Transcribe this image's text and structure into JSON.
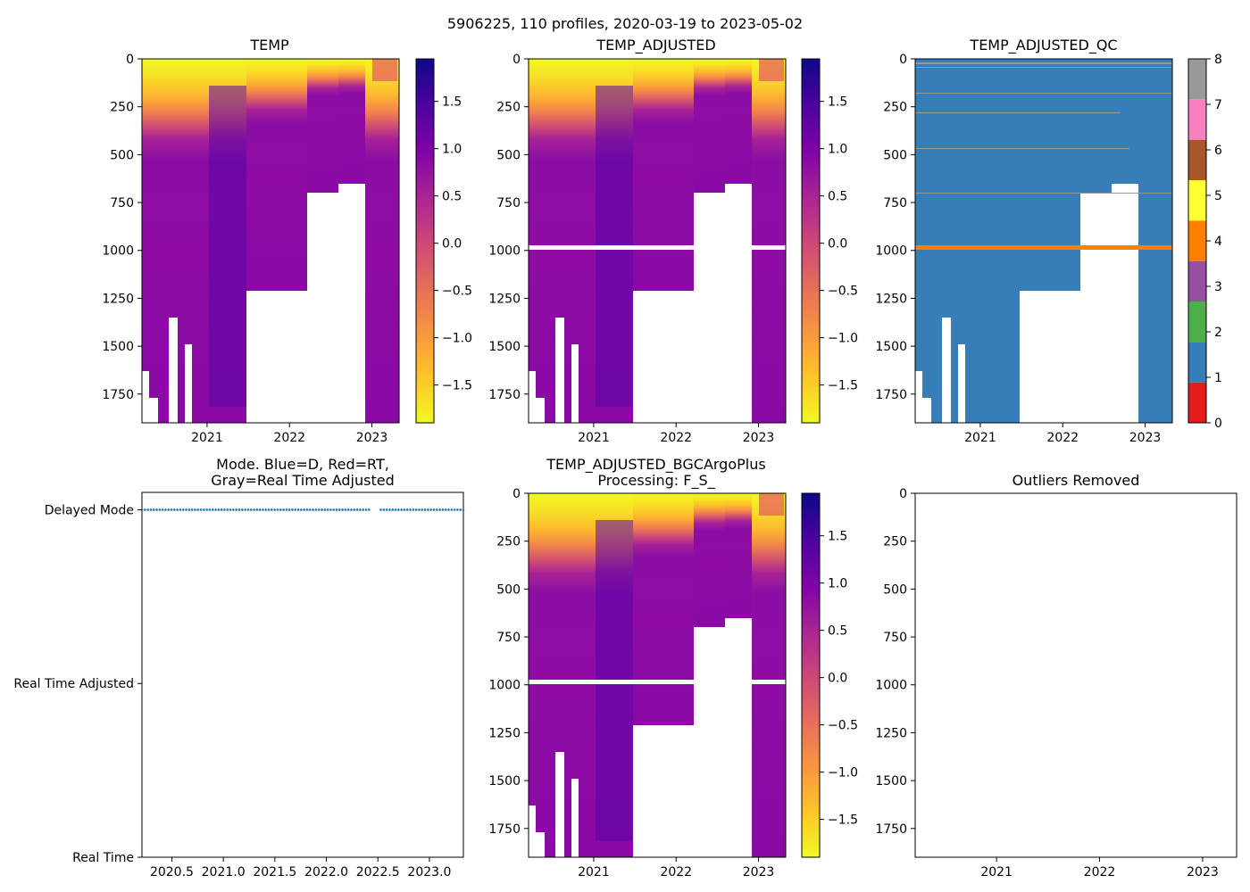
{
  "figure": {
    "suptitle": "5906225, 110 profiles, 2020-03-19 to 2023-05-02"
  },
  "chart_data": [
    {
      "id": "temp",
      "type": "heatmap",
      "title": "TEMP",
      "xlabel": "",
      "ylabel": "",
      "xlim": [
        2020.21,
        2023.33
      ],
      "ylim": [
        1900,
        0
      ],
      "xticks": [
        2021,
        2022,
        2023
      ],
      "xtick_labels": [
        "2021",
        "2022",
        "2023"
      ],
      "yticks": [
        0,
        250,
        500,
        750,
        1000,
        1250,
        1500,
        1750
      ],
      "ytick_labels": [
        "0",
        "250",
        "500",
        "750",
        "1000",
        "1250",
        "1500",
        "1750"
      ],
      "colorbar": {
        "colormap": "plasma_r",
        "range": [
          -1.9,
          1.95
        ],
        "ticks": [
          1.5,
          1.0,
          0.5,
          0.0,
          -0.5,
          -1.0,
          -1.5
        ],
        "tick_labels": [
          "1.5",
          "1.0",
          "0.5",
          "0.0",
          "−0.5",
          "−1.0",
          "−1.5"
        ]
      }
    },
    {
      "id": "temp-adjusted",
      "type": "heatmap",
      "title": "TEMP_ADJUSTED",
      "xlabel": "",
      "ylabel": "",
      "xlim": [
        2020.21,
        2023.33
      ],
      "ylim": [
        1900,
        0
      ],
      "xticks": [
        2021,
        2022,
        2023
      ],
      "xtick_labels": [
        "2021",
        "2022",
        "2023"
      ],
      "yticks": [
        0,
        250,
        500,
        750,
        1000,
        1250,
        1500,
        1750
      ],
      "ytick_labels": [
        "0",
        "250",
        "500",
        "750",
        "1000",
        "1250",
        "1500",
        "1750"
      ],
      "gap_band_depth": 985,
      "colorbar": {
        "colormap": "plasma_r",
        "range": [
          -1.9,
          1.95
        ],
        "ticks": [
          1.5,
          1.0,
          0.5,
          0.0,
          -0.5,
          -1.0,
          -1.5
        ],
        "tick_labels": [
          "1.5",
          "1.0",
          "0.5",
          "0.0",
          "−0.5",
          "−1.0",
          "−1.5"
        ]
      }
    },
    {
      "id": "temp-adjusted-qc",
      "type": "heatmap",
      "title": "TEMP_ADJUSTED_QC",
      "xlabel": "",
      "ylabel": "",
      "xlim": [
        2020.21,
        2023.33
      ],
      "ylim": [
        1900,
        0
      ],
      "xticks": [
        2021,
        2022,
        2023
      ],
      "xtick_labels": [
        "2021",
        "2022",
        "2023"
      ],
      "yticks": [
        0,
        250,
        500,
        750,
        1000,
        1250,
        1500,
        1750
      ],
      "ytick_labels": [
        "0",
        "250",
        "500",
        "750",
        "1000",
        "1250",
        "1500",
        "1750"
      ],
      "qc_flag_band_depth": 985,
      "colorbar": {
        "colormap": "qc_categorical",
        "range": [
          0,
          8
        ],
        "ticks": [
          8,
          7,
          6,
          5,
          4,
          3,
          2,
          1,
          0
        ],
        "tick_labels": [
          "8",
          "7",
          "6",
          "5",
          "4",
          "3",
          "2",
          "1",
          "0"
        ],
        "colors": [
          "#e41a1c",
          "#377eb8",
          "#4daf4a",
          "#984ea3",
          "#ff7f00",
          "#ffff33",
          "#a65628",
          "#f781bf",
          "#999999"
        ]
      }
    },
    {
      "id": "mode",
      "type": "scatter",
      "title": "Mode. Blue=D, Red=RT,",
      "title_line2": "Gray=Real Time Adjusted",
      "xlabel": "",
      "ylabel": "",
      "xlim": [
        2020.21,
        2023.33
      ],
      "ylim": [
        0,
        2.1
      ],
      "xticks": [
        2020.5,
        2021.0,
        2021.5,
        2022.0,
        2022.5,
        2023.0
      ],
      "xtick_labels": [
        "2020.5",
        "2021.0",
        "2021.5",
        "2022.0",
        "2022.5",
        "2023.0"
      ],
      "yticks": [
        2,
        1,
        0
      ],
      "ytick_labels": [
        "Delayed Mode",
        "Real Time Adjusted",
        "Real Time"
      ],
      "series": [
        {
          "name": "Delayed Mode profiles",
          "color": "#1f77b4",
          "y": 2,
          "x_start": 2020.21,
          "x_end": 2023.33,
          "count": 110
        }
      ]
    },
    {
      "id": "bgcargoplus",
      "type": "heatmap",
      "title": "TEMP_ADJUSTED_BGCArgoPlus",
      "title_line2": "Processing: F_S_",
      "xlabel": "",
      "ylabel": "",
      "xlim": [
        2020.21,
        2023.33
      ],
      "ylim": [
        1900,
        0
      ],
      "xticks": [
        2021,
        2022,
        2023
      ],
      "xtick_labels": [
        "2021",
        "2022",
        "2023"
      ],
      "yticks": [
        0,
        250,
        500,
        750,
        1000,
        1250,
        1500,
        1750
      ],
      "ytick_labels": [
        "0",
        "250",
        "500",
        "750",
        "1000",
        "1250",
        "1500",
        "1750"
      ],
      "gap_band_depth": 985,
      "colorbar": {
        "colormap": "plasma_r",
        "range": [
          -1.9,
          1.95
        ],
        "ticks": [
          1.5,
          1.0,
          0.5,
          0.0,
          -0.5,
          -1.0,
          -1.5
        ],
        "tick_labels": [
          "1.5",
          "1.0",
          "0.5",
          "0.0",
          "−0.5",
          "−1.0",
          "−1.5"
        ]
      }
    },
    {
      "id": "outliers",
      "type": "scatter",
      "title": "Outliers Removed",
      "xlabel": "",
      "ylabel": "",
      "xlim": [
        2020.21,
        2023.33
      ],
      "ylim": [
        1900,
        0
      ],
      "xticks": [
        2021,
        2022,
        2023
      ],
      "xtick_labels": [
        "2021",
        "2022",
        "2023"
      ],
      "yticks": [
        0,
        250,
        500,
        750,
        1000,
        1250,
        1500,
        1750
      ],
      "ytick_labels": [
        "0",
        "250",
        "500",
        "750",
        "1000",
        "1250",
        "1500",
        "1750"
      ],
      "series": []
    }
  ]
}
